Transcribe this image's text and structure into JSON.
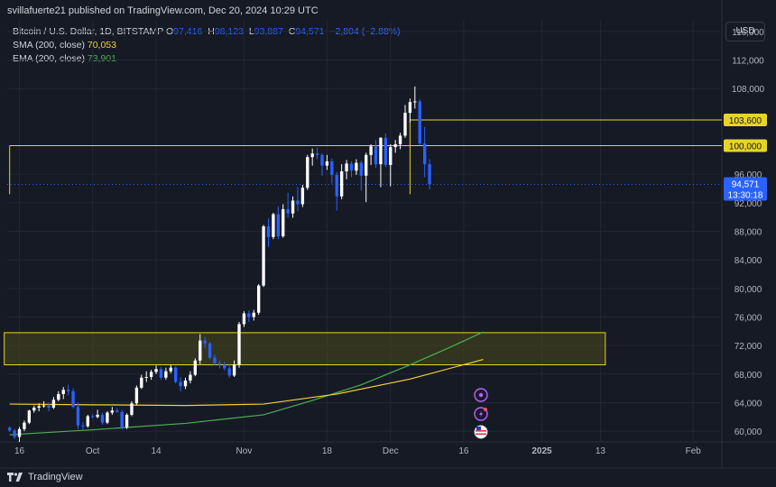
{
  "header": {
    "publish_line": "svillafuerte21 published on TradingView.com, Dec 20, 2024 10:29 UTC"
  },
  "legend": {
    "symbol": "Bitcoin / U.S. Dollar, 1D, BITSTAMP",
    "ohlc": {
      "o_label": "O",
      "o": "97,416",
      "h_label": "H",
      "h": "98,123",
      "l_label": "L",
      "l": "93,887",
      "c_label": "C",
      "c": "94,571",
      "change": "−2,804 (−2.88%)"
    },
    "sma_label": "SMA (200, close)",
    "sma_value": "70,053",
    "ema_label": "EMA (200, close)",
    "ema_value": "73,901"
  },
  "currency": "USD",
  "footer": {
    "brand": "TradingView",
    "logo_icon": "tradingview-logo-icon"
  },
  "colors": {
    "background": "#161a25",
    "up_candle": "#ffffff",
    "down_candle": "#2962ff",
    "sma": "#f2d230",
    "ema": "#4caf50",
    "level_line": "#e6d42a",
    "zone_fill": "#4b4a1c",
    "price_badge": "#2962ff"
  },
  "chart_data": {
    "type": "candlestick",
    "y_axis": {
      "range": [
        58500,
        117500
      ],
      "ticks": [
        60000,
        64000,
        68000,
        72000,
        76000,
        80000,
        84000,
        88000,
        92000,
        96000,
        100000,
        108000,
        112000,
        116000
      ],
      "tick_labels": [
        "60,000",
        "64,000",
        "68,000",
        "72,000",
        "76,000",
        "80,000",
        "84,000",
        "88,000",
        "92,000",
        "96,000",
        "100,000",
        "108,000",
        "112,000",
        "116,000"
      ]
    },
    "x_axis": {
      "start_date": "2024-09-14",
      "end_date": "2025-02-07",
      "labels": [
        {
          "date": "2024-09-16",
          "text": "16",
          "bold": false
        },
        {
          "date": "2024-10-01",
          "text": "Oct",
          "bold": false
        },
        {
          "date": "2024-10-14",
          "text": "14",
          "bold": false
        },
        {
          "date": "2024-11-01",
          "text": "Nov",
          "bold": false
        },
        {
          "date": "2024-11-18",
          "text": "18",
          "bold": false
        },
        {
          "date": "2024-12-01",
          "text": "Dec",
          "bold": false
        },
        {
          "date": "2024-12-16",
          "text": "16",
          "bold": false
        },
        {
          "date": "2025-01-01",
          "text": "2025",
          "bold": true
        },
        {
          "date": "2025-01-13",
          "text": "13",
          "bold": false
        },
        {
          "date": "2025-02-01",
          "text": "Feb",
          "bold": false
        }
      ]
    },
    "first_candle_date": "2024-09-14",
    "candles": [
      [
        60500,
        60700,
        59900,
        60100
      ],
      [
        60100,
        60300,
        58900,
        59200
      ],
      [
        59200,
        60600,
        58500,
        60300
      ],
      [
        60300,
        61500,
        60000,
        61200
      ],
      [
        61200,
        63000,
        61000,
        62900
      ],
      [
        62900,
        63600,
        62600,
        63300
      ],
      [
        63300,
        63900,
        62800,
        63500
      ],
      [
        63500,
        64200,
        63300,
        63600
      ],
      [
        63600,
        64000,
        62800,
        63300
      ],
      [
        63300,
        64800,
        63100,
        64400
      ],
      [
        64400,
        65600,
        64200,
        65200
      ],
      [
        65200,
        66200,
        64500,
        65800
      ],
      [
        65800,
        66500,
        65000,
        65600
      ],
      [
        65600,
        66000,
        63200,
        63400
      ],
      [
        63400,
        64000,
        60300,
        60800
      ],
      [
        60800,
        61300,
        60200,
        60700
      ],
      [
        60700,
        62300,
        60500,
        62100
      ],
      [
        62100,
        62400,
        61800,
        62000
      ],
      [
        62000,
        63000,
        61800,
        62300
      ],
      [
        62300,
        62600,
        60900,
        61200
      ],
      [
        61200,
        62800,
        61000,
        62600
      ],
      [
        62600,
        63400,
        62300,
        62900
      ],
      [
        62900,
        63200,
        62600,
        62700
      ],
      [
        62700,
        63000,
        60200,
        60500
      ],
      [
        60500,
        62500,
        60300,
        62300
      ],
      [
        62300,
        64200,
        62100,
        63900
      ],
      [
        63900,
        66400,
        63700,
        66100
      ],
      [
        66100,
        67900,
        65900,
        67500
      ],
      [
        67500,
        68400,
        66900,
        67600
      ],
      [
        67600,
        68600,
        67200,
        68300
      ],
      [
        68300,
        69200,
        68000,
        68700
      ],
      [
        68700,
        69000,
        67200,
        67500
      ],
      [
        67500,
        68900,
        67200,
        68400
      ],
      [
        68400,
        69300,
        68100,
        68900
      ],
      [
        68900,
        69100,
        66700,
        66900
      ],
      [
        66900,
        67600,
        65600,
        66300
      ],
      [
        66300,
        67500,
        65900,
        67100
      ],
      [
        67100,
        68400,
        66700,
        67900
      ],
      [
        67900,
        70200,
        67700,
        69900
      ],
      [
        69900,
        73600,
        69400,
        72700
      ],
      [
        72700,
        73200,
        71600,
        72300
      ],
      [
        72300,
        72500,
        70100,
        70300
      ],
      [
        70300,
        70700,
        69200,
        69500
      ],
      [
        69500,
        69900,
        68800,
        69300
      ],
      [
        69300,
        69700,
        68500,
        68800
      ],
      [
        68800,
        69400,
        67500,
        67800
      ],
      [
        67800,
        69900,
        67600,
        69300
      ],
      [
        69300,
        75300,
        68900,
        75000
      ],
      [
        75000,
        76800,
        74600,
        76500
      ],
      [
        76500,
        76900,
        75300,
        76000
      ],
      [
        76000,
        77000,
        75500,
        76600
      ],
      [
        76600,
        80600,
        76300,
        80400
      ],
      [
        80400,
        88900,
        80200,
        88700
      ],
      [
        88700,
        89800,
        85800,
        87200
      ],
      [
        87200,
        90600,
        86900,
        90400
      ],
      [
        90400,
        91500,
        86900,
        87300
      ],
      [
        87300,
        91800,
        87100,
        91100
      ],
      [
        91100,
        93400,
        89900,
        90500
      ],
      [
        90500,
        92900,
        89900,
        92300
      ],
      [
        92300,
        94200,
        90800,
        91800
      ],
      [
        91800,
        94500,
        91400,
        94100
      ],
      [
        94100,
        98700,
        93800,
        98400
      ],
      [
        98400,
        99600,
        97200,
        98900
      ],
      [
        98900,
        99700,
        98100,
        98700
      ],
      [
        98700,
        98900,
        95800,
        97200
      ],
      [
        97200,
        98700,
        96600,
        97800
      ],
      [
        97800,
        98200,
        94700,
        95900
      ],
      [
        95900,
        96300,
        90900,
        92900
      ],
      [
        92900,
        97400,
        92500,
        96400
      ],
      [
        96400,
        98000,
        95300,
        97500
      ],
      [
        97500,
        97800,
        95600,
        96500
      ],
      [
        96500,
        98100,
        95900,
        97600
      ],
      [
        97600,
        97900,
        93700,
        95800
      ],
      [
        95800,
        99000,
        92100,
        98700
      ],
      [
        98700,
        100200,
        97300,
        99900
      ],
      [
        99900,
        100800,
        96900,
        97400
      ],
      [
        97400,
        101200,
        94200,
        101100
      ],
      [
        101100,
        101700,
        97000,
        97300
      ],
      [
        97300,
        100200,
        94300,
        99800
      ],
      [
        99800,
        100800,
        99000,
        100200
      ],
      [
        100200,
        101800,
        99500,
        101400
      ],
      [
        101400,
        105700,
        101100,
        104600
      ],
      [
        104600,
        106600,
        103200,
        106100
      ],
      [
        106100,
        108300,
        105200,
        106200
      ],
      [
        106200,
        106500,
        100100,
        100300
      ],
      [
        100300,
        102600,
        95600,
        97400
      ],
      [
        97400,
        98100,
        93900,
        94600
      ]
    ],
    "sma_200": [
      {
        "date": "2024-09-14",
        "value": 63800
      },
      {
        "date": "2024-10-01",
        "value": 63700
      },
      {
        "date": "2024-10-20",
        "value": 63600
      },
      {
        "date": "2024-11-05",
        "value": 63800
      },
      {
        "date": "2024-11-20",
        "value": 65200
      },
      {
        "date": "2024-12-05",
        "value": 67300
      },
      {
        "date": "2024-12-20",
        "value": 70053
      }
    ],
    "ema_200": [
      {
        "date": "2024-09-14",
        "value": 59500
      },
      {
        "date": "2024-10-01",
        "value": 60200
      },
      {
        "date": "2024-10-20",
        "value": 61100
      },
      {
        "date": "2024-11-05",
        "value": 62300
      },
      {
        "date": "2024-11-15",
        "value": 64300
      },
      {
        "date": "2024-11-25",
        "value": 66500
      },
      {
        "date": "2024-12-05",
        "value": 69300
      },
      {
        "date": "2024-12-13",
        "value": 71700
      },
      {
        "date": "2024-12-20",
        "value": 73901
      }
    ],
    "horizontal_levels": [
      {
        "value": 100000,
        "label": "100,000",
        "from_date": "2024-09-14"
      },
      {
        "value": 103600,
        "label": "103,600",
        "from_date": "2024-12-05"
      }
    ],
    "current_price": {
      "value": 94571,
      "label": "94,571",
      "countdown": "13:30:18"
    },
    "zone": {
      "from_date": "2024-09-14",
      "to_date": "2025-01-14",
      "low": 69300,
      "high": 73800
    },
    "event_icons": [
      "dividend-icon",
      "split-flash-icon",
      "us-flag-icon"
    ]
  }
}
